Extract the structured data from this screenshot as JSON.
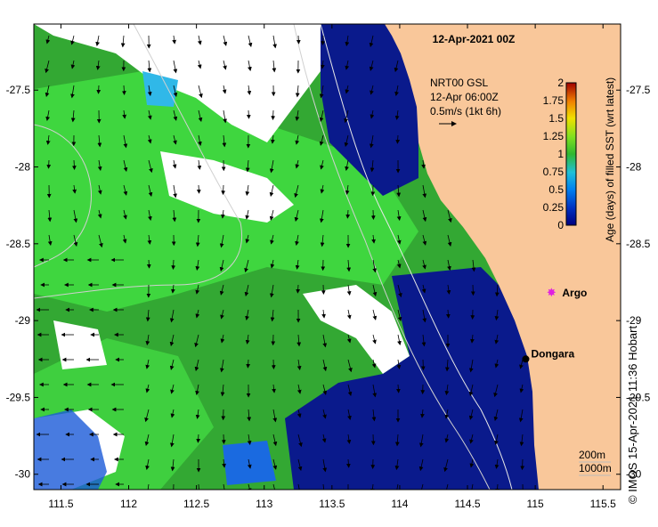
{
  "map": {
    "title": "12-Apr-2021 00Z",
    "lon_range": [
      111.3,
      115.63
    ],
    "lat_range": [
      -30.1,
      -27.07
    ],
    "x_ticks": [
      "111.5",
      "112",
      "112.5",
      "113",
      "113.5",
      "114",
      "114.5",
      "115",
      "115.5"
    ],
    "x_tick_values": [
      111.5,
      112,
      112.5,
      113,
      113.5,
      114,
      114.5,
      115,
      115.5
    ],
    "y_ticks": [
      "-27.5",
      "-28",
      "-28.5",
      "-29",
      "-29.5",
      "-30"
    ],
    "y_tick_values": [
      -27.5,
      -28,
      -28.5,
      -29,
      -29.5,
      -30
    ],
    "land_color": "#f9c79a",
    "current_annotation": {
      "line1": "NRT00 GSL",
      "line2": "12-Apr 06:00Z",
      "line3": "0.5m/s (1kt 6h)"
    },
    "places": [
      {
        "name": "Argo",
        "lon": 115.12,
        "lat": -28.82,
        "color": "#e020e0",
        "marker": "star"
      },
      {
        "name": "Dongara",
        "lon": 114.93,
        "lat": -29.25,
        "color": "#000000",
        "marker": "dot"
      }
    ],
    "isobath_labels": [
      "200m",
      "1000m"
    ]
  },
  "colorbar": {
    "title": "Age (days) of filled SST (wrt latest)",
    "ticks": [
      "0",
      "0.25",
      "0.5",
      "0.75",
      "1",
      "1.25",
      "1.5",
      "1.75",
      "2"
    ],
    "range": [
      0,
      2
    ],
    "colors": [
      "#000080",
      "#0040d0",
      "#0090f0",
      "#20c8c8",
      "#30c030",
      "#80e020",
      "#f0e000",
      "#f08000",
      "#a00000"
    ]
  },
  "credit": "© IMOS 15-Apr-2021 11:36 Hobart"
}
